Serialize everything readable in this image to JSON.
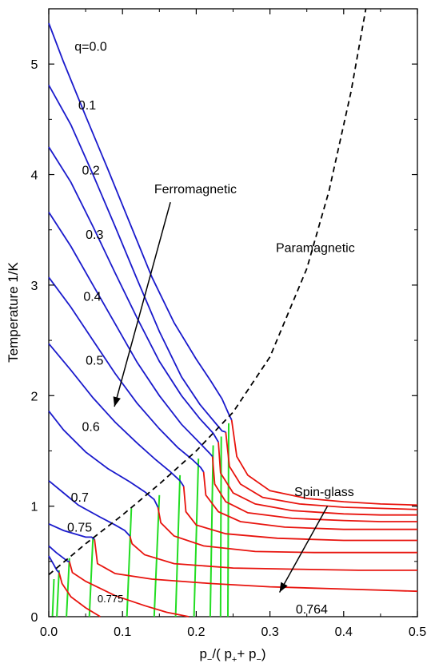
{
  "chart_data": {
    "type": "line",
    "title": "",
    "xlabel_parts": {
      "p1": "p",
      "sub1": "−",
      "mid": "/( p",
      "sub2": "+",
      "plus": "+ p",
      "sub3": "−",
      "end": ")"
    },
    "ylabel": "Temperature  1/K",
    "xlim": [
      0.0,
      0.5
    ],
    "ylim": [
      0,
      5.5
    ],
    "xticks": [
      "0.0",
      "0.1",
      "0.2",
      "0.3",
      "0.4",
      "0.5"
    ],
    "yticks": [
      "0",
      "1",
      "2",
      "3",
      "4",
      "5"
    ],
    "grid": false,
    "colors": {
      "ferro": "#1a1acc",
      "spinglass": "#e8140e",
      "vertical": "#22dd22",
      "boundary": "#000000"
    },
    "ferro_series": [
      {
        "name": "q=0.0",
        "x": [
          0.0,
          0.02,
          0.05,
          0.08,
          0.11,
          0.14,
          0.17,
          0.2,
          0.22,
          0.235,
          0.245,
          0.248
        ],
        "y": [
          5.37,
          5.02,
          4.53,
          4.05,
          3.56,
          3.07,
          2.66,
          2.33,
          2.13,
          1.97,
          1.82,
          1.78
        ]
      },
      {
        "name": "0.1",
        "x": [
          0.0,
          0.03,
          0.06,
          0.09,
          0.12,
          0.15,
          0.18,
          0.205,
          0.225,
          0.235,
          0.24
        ],
        "y": [
          4.81,
          4.45,
          4.0,
          3.53,
          3.05,
          2.58,
          2.17,
          1.92,
          1.76,
          1.68,
          1.67
        ]
      },
      {
        "name": "0.2",
        "x": [
          0.0,
          0.03,
          0.06,
          0.09,
          0.12,
          0.15,
          0.18,
          0.205,
          0.223,
          0.23
        ],
        "y": [
          4.25,
          3.93,
          3.53,
          3.11,
          2.7,
          2.31,
          2.0,
          1.79,
          1.66,
          1.58
        ]
      },
      {
        "name": "0.3",
        "x": [
          0.0,
          0.03,
          0.06,
          0.09,
          0.12,
          0.15,
          0.18,
          0.205,
          0.218,
          0.222
        ],
        "y": [
          3.66,
          3.35,
          3.0,
          2.65,
          2.3,
          2.0,
          1.74,
          1.57,
          1.48,
          1.45
        ]
      },
      {
        "name": "0.4",
        "x": [
          0.0,
          0.03,
          0.06,
          0.09,
          0.12,
          0.15,
          0.175,
          0.195,
          0.206,
          0.21
        ],
        "y": [
          3.07,
          2.8,
          2.5,
          2.2,
          1.93,
          1.7,
          1.53,
          1.42,
          1.35,
          1.31
        ]
      },
      {
        "name": "0.5",
        "x": [
          0.0,
          0.03,
          0.06,
          0.09,
          0.12,
          0.145,
          0.165,
          0.178,
          0.183
        ],
        "y": [
          2.47,
          2.23,
          1.98,
          1.76,
          1.57,
          1.42,
          1.31,
          1.23,
          1.18
        ]
      },
      {
        "name": "0.6",
        "x": [
          0.0,
          0.02,
          0.05,
          0.08,
          0.11,
          0.13,
          0.143,
          0.148
        ],
        "y": [
          1.86,
          1.69,
          1.49,
          1.34,
          1.22,
          1.13,
          1.06,
          0.99
        ]
      },
      {
        "name": "0.7",
        "x": [
          0.0,
          0.02,
          0.04,
          0.07,
          0.09,
          0.103,
          0.11
        ],
        "y": [
          1.23,
          1.12,
          1.01,
          0.9,
          0.83,
          0.78,
          0.73
        ]
      },
      {
        "name": "0.75",
        "x": [
          0.0,
          0.02,
          0.04,
          0.05,
          0.058,
          0.062
        ],
        "y": [
          0.84,
          0.78,
          0.74,
          0.72,
          0.72,
          0.7
        ]
      },
      {
        "name": "",
        "x": [
          0.0,
          0.01,
          0.02,
          0.026,
          0.028
        ],
        "y": [
          0.64,
          0.58,
          0.53,
          0.5,
          0.5
        ]
      },
      {
        "name": "",
        "x": [
          0.0,
          0.006,
          0.011,
          0.014
        ],
        "y": [
          0.55,
          0.48,
          0.42,
          0.4
        ]
      }
    ],
    "spinglass_series": [
      {
        "x": [
          0.248,
          0.255,
          0.27,
          0.3,
          0.35,
          0.4,
          0.45,
          0.5
        ],
        "y": [
          1.78,
          1.45,
          1.28,
          1.14,
          1.07,
          1.04,
          1.02,
          1.01
        ]
      },
      {
        "x": [
          0.24,
          0.245,
          0.26,
          0.29,
          0.34,
          0.4,
          0.45,
          0.5
        ],
        "y": [
          1.67,
          1.36,
          1.2,
          1.08,
          1.02,
          0.99,
          0.98,
          0.97
        ]
      },
      {
        "x": [
          0.23,
          0.233,
          0.25,
          0.28,
          0.33,
          0.4,
          0.45,
          0.5
        ],
        "y": [
          1.58,
          1.3,
          1.12,
          1.02,
          0.96,
          0.93,
          0.92,
          0.92
        ]
      },
      {
        "x": [
          0.222,
          0.225,
          0.24,
          0.27,
          0.33,
          0.4,
          0.45,
          0.5
        ],
        "y": [
          1.45,
          1.2,
          1.04,
          0.94,
          0.89,
          0.87,
          0.86,
          0.86
        ]
      },
      {
        "x": [
          0.21,
          0.213,
          0.23,
          0.26,
          0.32,
          0.4,
          0.45,
          0.5
        ],
        "y": [
          1.31,
          1.1,
          0.95,
          0.86,
          0.81,
          0.79,
          0.79,
          0.79
        ]
      },
      {
        "x": [
          0.183,
          0.186,
          0.2,
          0.24,
          0.31,
          0.4,
          0.45,
          0.5
        ],
        "y": [
          1.18,
          0.95,
          0.83,
          0.75,
          0.71,
          0.69,
          0.69,
          0.69
        ]
      },
      {
        "x": [
          0.148,
          0.152,
          0.17,
          0.21,
          0.28,
          0.36,
          0.45,
          0.5
        ],
        "y": [
          0.99,
          0.85,
          0.73,
          0.64,
          0.59,
          0.58,
          0.58,
          0.58
        ]
      },
      {
        "x": [
          0.11,
          0.113,
          0.13,
          0.17,
          0.25,
          0.33,
          0.42,
          0.5
        ],
        "y": [
          0.73,
          0.66,
          0.56,
          0.48,
          0.44,
          0.43,
          0.42,
          0.42
        ]
      },
      {
        "x": [
          0.062,
          0.066,
          0.09,
          0.14,
          0.22,
          0.3,
          0.4,
          0.5
        ],
        "y": [
          0.7,
          0.48,
          0.39,
          0.34,
          0.3,
          0.27,
          0.25,
          0.23
        ]
      },
      {
        "x": [
          0.028,
          0.032,
          0.05,
          0.09,
          0.13,
          0.16,
          0.19
        ],
        "y": [
          0.5,
          0.4,
          0.32,
          0.19,
          0.1,
          0.04,
          0.0
        ]
      },
      {
        "x": [
          0.014,
          0.018,
          0.03,
          0.05,
          0.07
        ],
        "y": [
          0.4,
          0.3,
          0.18,
          0.08,
          0.0
        ]
      }
    ],
    "vertical_series": [
      {
        "x": [
          0.243,
          0.244
        ],
        "y": [
          0.0,
          1.75
        ]
      },
      {
        "x": [
          0.233,
          0.234
        ],
        "y": [
          0.0,
          1.63
        ]
      },
      {
        "x": [
          0.219,
          0.223
        ],
        "y": [
          0.0,
          1.55
        ]
      },
      {
        "x": [
          0.197,
          0.203
        ],
        "y": [
          0.0,
          1.43
        ]
      },
      {
        "x": [
          0.172,
          0.178
        ],
        "y": [
          0.0,
          1.28
        ]
      },
      {
        "x": [
          0.143,
          0.15
        ],
        "y": [
          0.0,
          1.1
        ]
      },
      {
        "x": [
          0.106,
          0.112
        ],
        "y": [
          0.0,
          0.98
        ]
      },
      {
        "x": [
          0.055,
          0.06
        ],
        "y": [
          0.0,
          0.72
        ]
      },
      {
        "x": [
          0.024,
          0.028
        ],
        "y": [
          0.0,
          0.53
        ]
      },
      {
        "x": [
          0.011,
          0.014
        ],
        "y": [
          0.0,
          0.42
        ]
      },
      {
        "x": [
          0.005,
          0.007
        ],
        "y": [
          0.0,
          0.34
        ]
      }
    ],
    "boundary": {
      "x": [
        0.0,
        0.05,
        0.1,
        0.15,
        0.2,
        0.25,
        0.3,
        0.35,
        0.38,
        0.41,
        0.43
      ],
      "y": [
        0.38,
        0.66,
        0.92,
        1.2,
        1.5,
        1.85,
        2.35,
        3.15,
        3.85,
        4.75,
        5.5
      ]
    },
    "curve_labels": [
      {
        "text": "q=0.0",
        "x": 0.035,
        "y": 5.12
      },
      {
        "text": "0.1",
        "x": 0.04,
        "y": 4.59
      },
      {
        "text": "0.2",
        "x": 0.045,
        "y": 4.0
      },
      {
        "text": "0.3",
        "x": 0.05,
        "y": 3.42
      },
      {
        "text": "0.4",
        "x": 0.047,
        "y": 2.86
      },
      {
        "text": "0.5",
        "x": 0.05,
        "y": 2.28
      },
      {
        "text": "0.6",
        "x": 0.045,
        "y": 1.68
      },
      {
        "text": "0.7",
        "x": 0.03,
        "y": 1.04
      },
      {
        "text": "0.75",
        "x": 0.025,
        "y": 0.77
      },
      {
        "text": "0.775",
        "x": 0.066,
        "y": 0.13
      },
      {
        "text": "0.764",
        "x": 0.335,
        "y": 0.03
      }
    ],
    "region_labels": [
      {
        "text": "Ferromagnetic",
        "x": 0.143,
        "y": 3.83
      },
      {
        "text": "Paramagnetic",
        "x": 0.308,
        "y": 3.3
      },
      {
        "text": "Spin-glass",
        "x": 0.333,
        "y": 1.09
      }
    ],
    "arrows": [
      {
        "from": [
          0.165,
          3.75
        ],
        "to": [
          0.089,
          1.9
        ]
      },
      {
        "from": [
          0.378,
          1.0
        ],
        "to": [
          0.313,
          0.22
        ]
      }
    ]
  }
}
